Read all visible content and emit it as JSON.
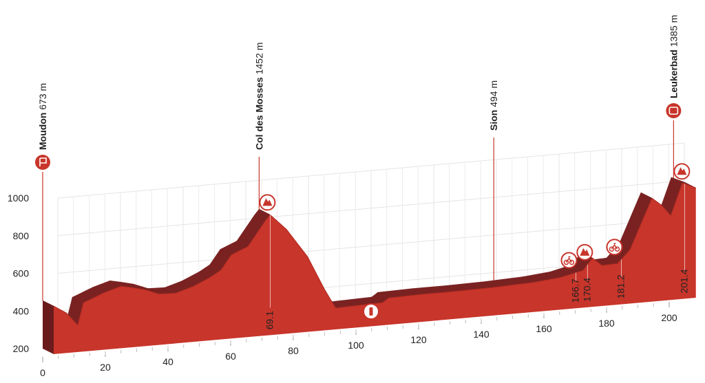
{
  "chart_data": {
    "type": "area",
    "x": [
      0,
      4,
      7.7,
      9.5,
      12.7,
      16,
      21.5,
      24.8,
      29,
      33.6,
      39,
      44.6,
      50,
      53.4,
      56.7,
      62,
      67.7,
      69.1,
      71,
      74.3,
      81,
      86.4,
      90,
      96,
      105,
      107,
      118,
      129,
      140,
      153,
      162,
      169,
      172,
      175,
      180,
      184,
      191,
      194,
      197,
      200.7,
      205
    ],
    "values": [
      455,
      413,
      342,
      459,
      480,
      502,
      529,
      517,
      500,
      470,
      467,
      495,
      535,
      568,
      644,
      681,
      812,
      839,
      808,
      754,
      600,
      419,
      313,
      316,
      320,
      342,
      346,
      346,
      349,
      357,
      371,
      398,
      459,
      415,
      418,
      486,
      749,
      708,
      648,
      816,
      783
    ],
    "color": "#c8352b",
    "side_color": "#7a2222",
    "xlim": [
      0,
      200
    ],
    "ylim": [
      200,
      1000
    ],
    "xticks": [
      0,
      20,
      40,
      60,
      80,
      100,
      120,
      140,
      160,
      180,
      200
    ],
    "yticks": [
      200,
      400,
      600,
      800,
      1000
    ],
    "grid": true,
    "annotations": [
      {
        "name": "Moudon",
        "elevation": "673 m",
        "km": 0
      },
      {
        "name": "Col des Mosses",
        "elevation": "1452 m",
        "km": 69.1
      },
      {
        "name": "Sion",
        "elevation": "494 m",
        "km": 144
      },
      {
        "name": "Leukerbad",
        "elevation": "1385 m",
        "km": 201.4
      }
    ],
    "markers": [
      69.1,
      166.7,
      170.4,
      181.2,
      201.4
    ]
  }
}
